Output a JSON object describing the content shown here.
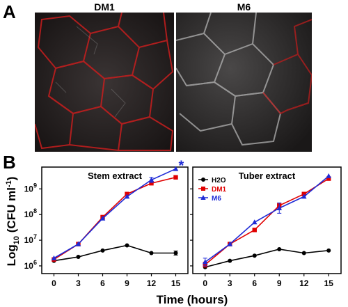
{
  "panels": {
    "a": {
      "letter": "A",
      "images": [
        {
          "label": "DM1",
          "tint": "#e02020"
        },
        {
          "label": "M6",
          "tint": "#e02020"
        }
      ]
    },
    "b": {
      "letter": "B",
      "ylabel_main": "Log",
      "ylabel_sub": "10",
      "ylabel_rest": " (CFU ml",
      "ylabel_sup": "-1",
      "ylabel_end": ")",
      "xlabel": "Time (hours)",
      "legend": [
        {
          "name": "H2O",
          "color": "#000000",
          "marker": "circle"
        },
        {
          "name": "DM1",
          "color": "#e00000",
          "marker": "square"
        },
        {
          "name": "M6",
          "color": "#1f2bd6",
          "marker": "triangle"
        }
      ],
      "asterisk": "*",
      "y_ticks": [
        {
          "base": "10",
          "exp": "6",
          "value": 6
        },
        {
          "base": "10",
          "exp": "7",
          "value": 7
        },
        {
          "base": "10",
          "exp": "8",
          "value": 8
        },
        {
          "base": "10",
          "exp": "9",
          "value": 9
        }
      ],
      "x_ticks": [
        "0",
        "3",
        "6",
        "9",
        "12",
        "15"
      ]
    }
  },
  "chart_data": [
    {
      "type": "line",
      "title": "Stem extract",
      "x": [
        0,
        3,
        6,
        9,
        12,
        15
      ],
      "xlim": [
        -1.5,
        16.5
      ],
      "ylim": [
        5.7,
        9.85
      ],
      "y_scale": "log10",
      "series": [
        {
          "name": "H2O",
          "values": [
            6.2,
            6.35,
            6.6,
            6.8,
            6.5,
            6.5
          ],
          "err": [
            0,
            0,
            0,
            0,
            0,
            0.08
          ]
        },
        {
          "name": "DM1",
          "values": [
            6.25,
            6.85,
            7.9,
            8.8,
            9.22,
            9.45
          ],
          "err": [
            0,
            0,
            0,
            0,
            0,
            0
          ]
        },
        {
          "name": "M6",
          "values": [
            6.3,
            6.85,
            7.85,
            8.7,
            9.35,
            9.78
          ],
          "err": [
            0,
            0,
            0,
            0,
            0.1,
            0
          ]
        }
      ],
      "annotation": {
        "text": "*",
        "x": 15,
        "series": "M6"
      }
    },
    {
      "type": "line",
      "title": "Tuber extract",
      "x": [
        0,
        3,
        6,
        9,
        12,
        15
      ],
      "xlim": [
        -1.5,
        16.5
      ],
      "ylim": [
        5.7,
        9.85
      ],
      "y_scale": "log10",
      "legend": "top-left",
      "series": [
        {
          "name": "H2O",
          "values": [
            5.95,
            6.2,
            6.4,
            6.65,
            6.5,
            6.6
          ],
          "err": [
            0,
            0,
            0,
            0,
            0,
            0
          ]
        },
        {
          "name": "DM1",
          "values": [
            6.05,
            6.85,
            7.4,
            8.35,
            8.8,
            9.4
          ],
          "err": [
            0.1,
            0,
            0,
            0.1,
            0,
            0
          ]
        },
        {
          "name": "M6",
          "values": [
            6.15,
            6.85,
            7.7,
            8.25,
            8.7,
            9.5
          ],
          "err": [
            0.15,
            0,
            0,
            0.2,
            0,
            0
          ]
        }
      ]
    }
  ]
}
